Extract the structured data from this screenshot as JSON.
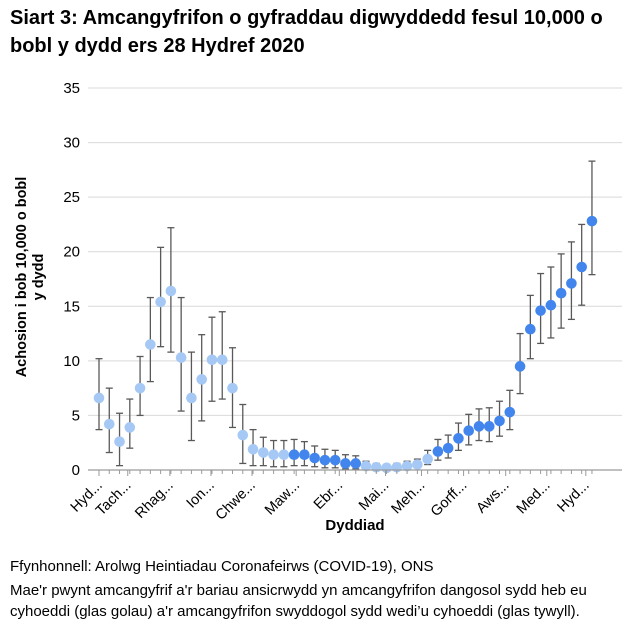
{
  "title": "Siart 3: Amcangyfrifon o gyfraddau digwyddedd fesul 10,000 o bobl y dydd ers 28 Hydref 2020",
  "footer": {
    "source": "Ffynhonnell: Arolwg Heintiadau Coronafeirws (COVID-19), ONS",
    "note": "Mae'r pwynt amcangyfrif a'r bariau ansicrwydd yn amcangyfrifon dangosol sydd heb eu cyhoeddi (glas golau) a'r amcangyfrifon swyddogol sydd wedi’u cyhoeddi (glas tywyll)."
  },
  "colors": {
    "light_blue": "#a6c8f5",
    "dark_blue": "#4285ec",
    "error_bar": "#595959",
    "gridline": "#d9d9d9",
    "axis_line": "#9a9a9a",
    "text": "#000000"
  },
  "chart_data": {
    "type": "scatter",
    "title": "Siart 3: Amcangyfrifon o gyfraddau digwyddedd fesul 10,000 o bobl y dydd ers 28 Hydref 2020",
    "xlabel": "Dyddiad",
    "ylabel": "Achosion i bob 10,000 o bobl y dydd",
    "ylabel_lines": [
      "Achosion i bob 10,000 o bobl",
      "y dydd"
    ],
    "ylim": [
      0,
      35
    ],
    "yticks": [
      0,
      5,
      10,
      15,
      20,
      25,
      30,
      35
    ],
    "grid": true,
    "legend_position": "none",
    "x_unit": "wythnos (weekly estimates since 28 Hydref 2020)",
    "x_tick_labels": [
      "Hyd...",
      "Tach...",
      "Rhag...",
      "Ion...",
      "Chwe...",
      "Maw...",
      "Ebr...",
      "Mai...",
      "Meh...",
      "Gorff...",
      "Aws...",
      "Med...",
      "Hyd..."
    ],
    "x_tick_positions_weeks": [
      0,
      2.8,
      6.9,
      10.9,
      14.9,
      19.2,
      23.4,
      27.9,
      31.4,
      35.5,
      39.6,
      43.6,
      47.4
    ],
    "series": [
      {
        "name": "Amcangyfrifon dangosol heb eu cyhoeddi",
        "style": "glas golau (light blue)",
        "color": "#a6c8f5"
      },
      {
        "name": "Amcangyfrifon swyddogol wedi'u cyhoeddi",
        "style": "glas tywyll (dark blue)",
        "color": "#4285ec"
      }
    ],
    "points": [
      {
        "week": 0,
        "v": 6.6,
        "lo": 3.7,
        "hi": 10.2,
        "published": false
      },
      {
        "week": 1,
        "v": 4.2,
        "lo": 1.6,
        "hi": 7.5,
        "published": false
      },
      {
        "week": 2,
        "v": 2.6,
        "lo": 0.4,
        "hi": 5.2,
        "published": false
      },
      {
        "week": 3,
        "v": 3.9,
        "lo": 2.0,
        "hi": 6.5,
        "published": false
      },
      {
        "week": 4,
        "v": 7.5,
        "lo": 5.0,
        "hi": 10.4,
        "published": false
      },
      {
        "week": 5,
        "v": 11.5,
        "lo": 8.1,
        "hi": 15.8,
        "published": false
      },
      {
        "week": 6,
        "v": 15.4,
        "lo": 11.3,
        "hi": 20.4,
        "published": false
      },
      {
        "week": 7,
        "v": 16.4,
        "lo": 10.8,
        "hi": 22.2,
        "published": false
      },
      {
        "week": 8,
        "v": 10.3,
        "lo": 5.4,
        "hi": 15.8,
        "published": false
      },
      {
        "week": 9,
        "v": 6.6,
        "lo": 2.7,
        "hi": 10.8,
        "published": false
      },
      {
        "week": 10,
        "v": 8.3,
        "lo": 4.5,
        "hi": 12.4,
        "published": false
      },
      {
        "week": 11,
        "v": 10.1,
        "lo": 6.3,
        "hi": 14.0,
        "published": false
      },
      {
        "week": 12,
        "v": 10.1,
        "lo": 6.5,
        "hi": 14.5,
        "published": false
      },
      {
        "week": 13,
        "v": 7.5,
        "lo": 3.9,
        "hi": 11.2,
        "published": false
      },
      {
        "week": 14,
        "v": 3.2,
        "lo": 0.6,
        "hi": 6.0,
        "published": false
      },
      {
        "week": 15,
        "v": 1.9,
        "lo": 0.4,
        "hi": 3.7,
        "published": false
      },
      {
        "week": 16,
        "v": 1.6,
        "lo": 0.4,
        "hi": 3.0,
        "published": false
      },
      {
        "week": 17,
        "v": 1.4,
        "lo": 0.3,
        "hi": 2.7,
        "published": false
      },
      {
        "week": 18,
        "v": 1.4,
        "lo": 0.3,
        "hi": 2.7,
        "published": false
      },
      {
        "week": 19,
        "v": 1.4,
        "lo": 0.4,
        "hi": 2.8,
        "published": true
      },
      {
        "week": 20,
        "v": 1.4,
        "lo": 0.4,
        "hi": 2.6,
        "published": true
      },
      {
        "week": 21,
        "v": 1.1,
        "lo": 0.3,
        "hi": 2.2,
        "published": true
      },
      {
        "week": 22,
        "v": 0.9,
        "lo": 0.2,
        "hi": 1.9,
        "published": true
      },
      {
        "week": 23,
        "v": 0.9,
        "lo": 0.2,
        "hi": 1.8,
        "published": true
      },
      {
        "week": 24,
        "v": 0.6,
        "lo": 0.1,
        "hi": 1.4,
        "published": true
      },
      {
        "week": 25,
        "v": 0.6,
        "lo": 0.1,
        "hi": 1.3,
        "published": true
      },
      {
        "week": 26,
        "v": 0.35,
        "lo": 0.1,
        "hi": 0.8,
        "published": false
      },
      {
        "week": 27,
        "v": 0.25,
        "lo": 0.05,
        "hi": 0.6,
        "published": false
      },
      {
        "week": 28,
        "v": 0.2,
        "lo": 0.05,
        "hi": 0.5,
        "published": false
      },
      {
        "week": 29,
        "v": 0.25,
        "lo": 0.05,
        "hi": 0.6,
        "published": false
      },
      {
        "week": 30,
        "v": 0.35,
        "lo": 0.1,
        "hi": 0.8,
        "published": false
      },
      {
        "week": 31,
        "v": 0.5,
        "lo": 0.2,
        "hi": 1.0,
        "published": false
      },
      {
        "week": 32,
        "v": 1.0,
        "lo": 0.5,
        "hi": 1.8,
        "published": false
      },
      {
        "week": 33,
        "v": 1.7,
        "lo": 0.9,
        "hi": 2.8,
        "published": true
      },
      {
        "week": 34,
        "v": 2.0,
        "lo": 1.1,
        "hi": 3.2,
        "published": true
      },
      {
        "week": 35,
        "v": 2.9,
        "lo": 1.8,
        "hi": 4.3,
        "published": true
      },
      {
        "week": 36,
        "v": 3.6,
        "lo": 2.3,
        "hi": 5.1,
        "published": true
      },
      {
        "week": 37,
        "v": 4.0,
        "lo": 2.7,
        "hi": 5.6,
        "published": true
      },
      {
        "week": 38,
        "v": 4.0,
        "lo": 2.6,
        "hi": 5.7,
        "published": true
      },
      {
        "week": 39,
        "v": 4.5,
        "lo": 3.1,
        "hi": 6.3,
        "published": true
      },
      {
        "week": 40,
        "v": 5.3,
        "lo": 3.7,
        "hi": 7.3,
        "published": true
      },
      {
        "week": 41,
        "v": 9.5,
        "lo": 7.0,
        "hi": 12.5,
        "published": true
      },
      {
        "week": 42,
        "v": 12.9,
        "lo": 10.2,
        "hi": 16.0,
        "published": true
      },
      {
        "week": 43,
        "v": 14.6,
        "lo": 11.6,
        "hi": 18.0,
        "published": true
      },
      {
        "week": 44,
        "v": 15.1,
        "lo": 12.1,
        "hi": 18.6,
        "published": true
      },
      {
        "week": 45,
        "v": 16.2,
        "lo": 13.0,
        "hi": 19.8,
        "published": true
      },
      {
        "week": 46,
        "v": 17.1,
        "lo": 13.8,
        "hi": 20.9,
        "published": true
      },
      {
        "week": 47,
        "v": 18.6,
        "lo": 15.1,
        "hi": 22.5,
        "published": true
      },
      {
        "week": 48,
        "v": 22.8,
        "lo": 17.9,
        "hi": 28.3,
        "published": true
      }
    ]
  }
}
